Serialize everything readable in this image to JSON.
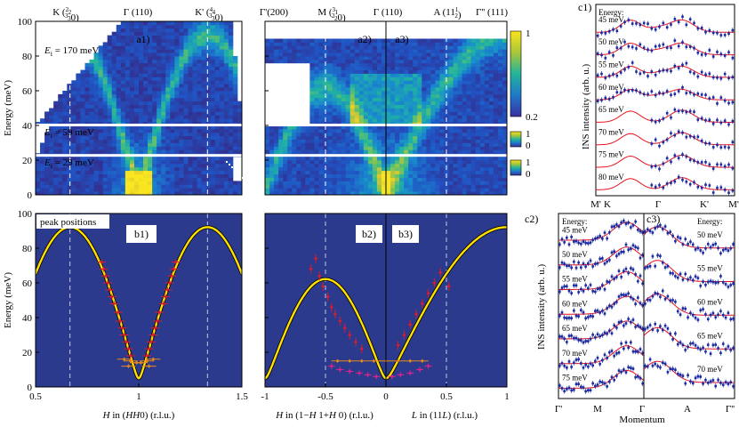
{
  "palette": {
    "background": "#2b3a8c",
    "dispersion": "#ffe000",
    "fit": "#e8141c",
    "data_points": "#1a2aa0",
    "errorbar_red": "#dd1b2c",
    "errorbar_magenta": "#e0208e",
    "errorbar_orange": "#e88a1a"
  },
  "top_labels": [
    "K (2/3 2/3 0)",
    "Γ (110)",
    "K' (4/3 4/3 0)",
    "Γ'(200)",
    "M (3/2 1/2 0)",
    "Γ (110)",
    "A (1 1 1/2)",
    "Γ'' (111)"
  ],
  "top_label_parts": [
    {
      "pre": "K (",
      "frac": [
        [
          "2",
          "3"
        ],
        [
          "2",
          "3"
        ]
      ],
      "post": "0)"
    },
    {
      "pre": "Γ (110)",
      "frac": [],
      "post": ""
    },
    {
      "pre": "K' (",
      "frac": [
        [
          "4",
          "3"
        ],
        [
          "4",
          "3"
        ]
      ],
      "post": "0)"
    },
    {
      "pre": "Γ'(200)",
      "frac": [],
      "post": ""
    },
    {
      "pre": "M (",
      "frac": [
        [
          "3",
          "2"
        ],
        [
          "1",
          "2"
        ]
      ],
      "post": "0)"
    },
    {
      "pre": "Γ (110)",
      "frac": [],
      "post": ""
    },
    {
      "pre": "A (11",
      "frac": [
        [
          "1",
          "2"
        ]
      ],
      "post": ")"
    },
    {
      "pre": "Γ'' (111)",
      "frac": [],
      "post": ""
    }
  ],
  "chart_data": [
    {
      "id": "a1",
      "type": "heatmap",
      "panel_label": "a1)",
      "ylabel": "Energy (meV)",
      "ylim": [
        0,
        100
      ],
      "yticks": [
        0,
        20,
        40,
        60,
        80,
        100
      ],
      "xlim": [
        0.5,
        1.5
      ],
      "annotations": [
        "E_i = 170 meV",
        "E_i = 59 meV",
        "E_i = 29 meV"
      ],
      "ei_parts": [
        [
          "E",
          "i",
          " = 170 meV"
        ],
        [
          "E",
          "i",
          " = 59 meV"
        ],
        [
          "E",
          "i",
          " = 29 meV"
        ]
      ]
    },
    {
      "id": "a2a3",
      "type": "heatmap",
      "panel_labels": [
        "a2)",
        "a3)"
      ],
      "ylim": [
        0,
        100
      ]
    },
    {
      "id": "colorbars",
      "type": "heatmap",
      "ticks_top": [
        "1",
        "0.2"
      ],
      "ticks_mid": [
        "1",
        "0"
      ],
      "ticks_bot": [
        "1",
        "0"
      ]
    },
    {
      "id": "b1",
      "type": "scatter",
      "panel_label": "b1)",
      "legend_box": "peak positions",
      "xlabel_parts": [
        "H",
        " in (",
        "HH",
        "0) (r.l.u.)"
      ],
      "ylabel": "Energy (meV)",
      "xlim": [
        0.5,
        1.5
      ],
      "xticks": [
        "0.5",
        "1",
        "1.5"
      ],
      "ylim": [
        0,
        100
      ],
      "yticks": [
        0,
        20,
        40,
        60,
        80,
        100
      ],
      "dashed_lines_x": [
        0.6667,
        1.3333
      ],
      "dispersion_model": "E = sqrt(5^2 + 92^2 * sin^2(2*pi*(H-1)*0.75))",
      "peaks_red": [
        {
          "x": 0.82,
          "y": 72
        },
        {
          "x": 0.83,
          "y": 68
        },
        {
          "x": 0.84,
          "y": 64
        },
        {
          "x": 0.85,
          "y": 60
        },
        {
          "x": 0.86,
          "y": 56
        },
        {
          "x": 0.87,
          "y": 52
        },
        {
          "x": 0.88,
          "y": 48
        },
        {
          "x": 0.9,
          "y": 43
        },
        {
          "x": 0.91,
          "y": 38
        },
        {
          "x": 0.92,
          "y": 34
        },
        {
          "x": 0.93,
          "y": 30
        },
        {
          "x": 0.94,
          "y": 26
        },
        {
          "x": 0.95,
          "y": 22
        },
        {
          "x": 0.96,
          "y": 18
        },
        {
          "x": 1.04,
          "y": 18
        },
        {
          "x": 1.05,
          "y": 22
        },
        {
          "x": 1.06,
          "y": 26
        },
        {
          "x": 1.07,
          "y": 30
        },
        {
          "x": 1.08,
          "y": 34
        },
        {
          "x": 1.09,
          "y": 38
        },
        {
          "x": 1.1,
          "y": 43
        },
        {
          "x": 1.12,
          "y": 48
        },
        {
          "x": 1.13,
          "y": 52
        },
        {
          "x": 1.14,
          "y": 56
        },
        {
          "x": 1.15,
          "y": 60
        },
        {
          "x": 1.16,
          "y": 64
        },
        {
          "x": 1.17,
          "y": 68
        },
        {
          "x": 1.18,
          "y": 72
        }
      ],
      "peaks_orange": [
        {
          "x": 0.93,
          "y": 16
        },
        {
          "x": 0.96,
          "y": 15
        },
        {
          "x": 0.99,
          "y": 14
        },
        {
          "x": 1.01,
          "y": 14
        },
        {
          "x": 1.04,
          "y": 15
        },
        {
          "x": 1.07,
          "y": 16
        },
        {
          "x": 0.95,
          "y": 12
        },
        {
          "x": 1.05,
          "y": 12
        }
      ]
    },
    {
      "id": "b2b3",
      "type": "scatter",
      "panel_labels": [
        "b2)",
        "b3)"
      ],
      "xlabel_left_parts": [
        "H",
        " in (1−",
        "H",
        " 1+",
        "H",
        " 0) (r.l.u.)"
      ],
      "xlabel_right_parts": [
        "L",
        " in (11",
        "L",
        ") (r.l.u.)"
      ],
      "xlim": [
        -1,
        1
      ],
      "xticks": [
        "-1",
        "-0.5",
        "0",
        "0.5",
        "1"
      ],
      "ylim": [
        0,
        100
      ],
      "dashed_lines_x": [
        -0.5,
        0.5
      ],
      "dispersion_left": "E = sqrt(5^2 + 62^2 * sin^2(pi*x))",
      "dispersion_right": "E = sqrt(5^2 + 92^2 * sin^2(pi*x/2))",
      "peaks_red": [
        {
          "x": -0.62,
          "y": 68
        },
        {
          "x": -0.58,
          "y": 74
        },
        {
          "x": -0.55,
          "y": 64
        },
        {
          "x": -0.52,
          "y": 58
        },
        {
          "x": -0.48,
          "y": 52
        },
        {
          "x": -0.45,
          "y": 46
        },
        {
          "x": -0.42,
          "y": 42
        },
        {
          "x": -0.38,
          "y": 38
        },
        {
          "x": -0.34,
          "y": 34
        },
        {
          "x": -0.3,
          "y": 30
        },
        {
          "x": -0.25,
          "y": 26
        },
        {
          "x": -0.2,
          "y": 22
        },
        {
          "x": 0.1,
          "y": 24
        },
        {
          "x": 0.15,
          "y": 30
        },
        {
          "x": 0.2,
          "y": 36
        },
        {
          "x": 0.25,
          "y": 42
        },
        {
          "x": 0.3,
          "y": 48
        },
        {
          "x": 0.35,
          "y": 54
        },
        {
          "x": 0.4,
          "y": 60
        },
        {
          "x": 0.45,
          "y": 66
        },
        {
          "x": 0.52,
          "y": 58
        }
      ],
      "peaks_magenta": [
        {
          "x": -0.45,
          "y": 12
        },
        {
          "x": -0.38,
          "y": 10
        },
        {
          "x": -0.3,
          "y": 9
        },
        {
          "x": -0.22,
          "y": 8
        },
        {
          "x": -0.15,
          "y": 7
        },
        {
          "x": -0.08,
          "y": 6
        },
        {
          "x": 0.05,
          "y": 6
        },
        {
          "x": 0.12,
          "y": 7
        },
        {
          "x": 0.2,
          "y": 8
        },
        {
          "x": 0.28,
          "y": 10
        },
        {
          "x": 0.35,
          "y": 12
        }
      ],
      "peaks_orange": [
        {
          "x": -0.4,
          "y": 15
        },
        {
          "x": -0.3,
          "y": 15
        },
        {
          "x": -0.2,
          "y": 15
        },
        {
          "x": -0.1,
          "y": 15
        },
        {
          "x": 0.0,
          "y": 15
        },
        {
          "x": 0.1,
          "y": 15
        },
        {
          "x": 0.2,
          "y": 15
        },
        {
          "x": 0.3,
          "y": 15
        }
      ]
    },
    {
      "id": "c1",
      "type": "line",
      "panel_label": "c1)",
      "ylabel": "INS intensity (arb. u.)",
      "legend_title": "Energy:",
      "series": [
        {
          "name": "45 meV"
        },
        {
          "name": "50 meV"
        },
        {
          "name": "55 meV"
        },
        {
          "name": "60 meV"
        },
        {
          "name": "65 meV"
        },
        {
          "name": "70 meV"
        },
        {
          "name": "75 meV"
        },
        {
          "name": "80 meV"
        }
      ],
      "xtick_labels": [
        "M'",
        "K",
        "Γ",
        "K'",
        "M''"
      ]
    },
    {
      "id": "c2",
      "type": "line",
      "panel_label": "c2)",
      "ylabel": "INS intensity (arb. u.)",
      "legend_title": "Energy:",
      "series": [
        {
          "name": "45 meV"
        },
        {
          "name": "50 meV"
        },
        {
          "name": "55 meV"
        },
        {
          "name": "60 meV"
        },
        {
          "name": "65 meV"
        },
        {
          "name": "70 meV"
        },
        {
          "name": "75 meV"
        }
      ],
      "xtick_labels": [
        "Γ'",
        "M",
        "Γ"
      ]
    },
    {
      "id": "c3",
      "type": "line",
      "panel_label": "c3)",
      "legend_title": "Energy:",
      "series": [
        {
          "name": "50 meV"
        },
        {
          "name": "55 meV"
        },
        {
          "name": "60 meV"
        },
        {
          "name": "65 meV"
        },
        {
          "name": "70 meV"
        }
      ],
      "xtick_labels": [
        "A",
        "Γ''"
      ],
      "xlabel": "Momentum"
    }
  ]
}
